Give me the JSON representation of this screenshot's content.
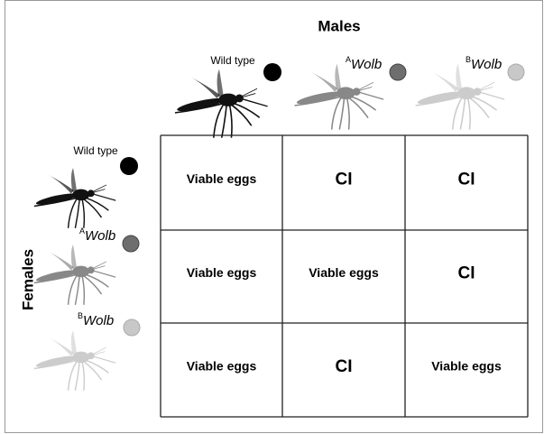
{
  "header": {
    "title": "Males",
    "side_title": "Females"
  },
  "columns": [
    {
      "label": "Wild type"
    },
    {
      "sup": "A",
      "label": "Wolb"
    },
    {
      "sup": "B",
      "label": "Wolb"
    }
  ],
  "rows": [
    {
      "label": "Wild type"
    },
    {
      "sup": "A",
      "label": "Wolb"
    },
    {
      "sup": "B",
      "label": "Wolb"
    }
  ],
  "grid": [
    [
      "Viable eggs",
      "CI",
      "CI"
    ],
    [
      "Viable eggs",
      "Viable eggs",
      "CI"
    ],
    [
      "Viable eggs",
      "CI",
      "Viable eggs"
    ]
  ]
}
